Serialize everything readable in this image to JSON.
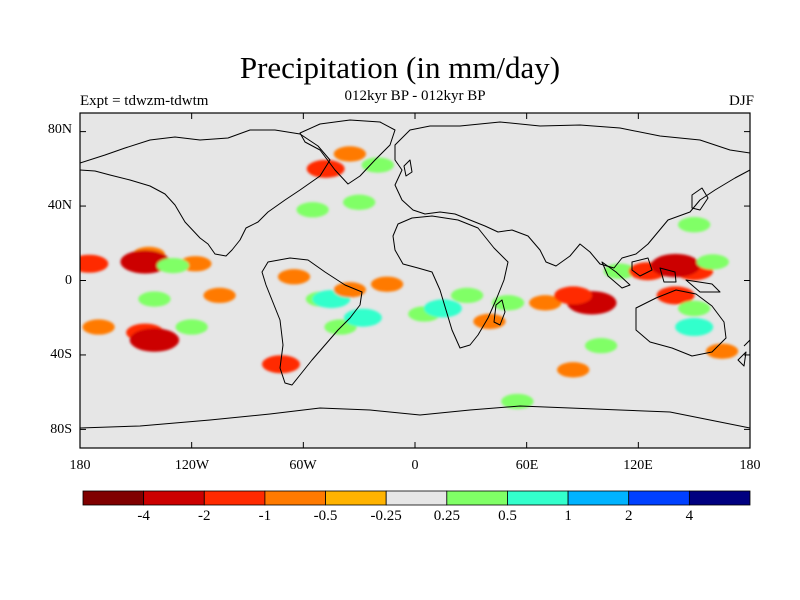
{
  "title": "Precipitation (in mm/day)",
  "subtitle": "012kyr BP - 012kyr BP",
  "experiment": "Expt = tdwzm-tdwtm",
  "season": "DJF",
  "lat_labels": [
    "80N",
    "40N",
    "0",
    "40S",
    "80S"
  ],
  "lon_labels": [
    "180",
    "120W",
    "60W",
    "0",
    "60E",
    "120E",
    "180"
  ],
  "colorbar": {
    "colors": [
      "#800000",
      "#cc0000",
      "#ff2a00",
      "#ff7a00",
      "#ffb300",
      "#e6e6e6",
      "#80ff66",
      "#33ffcc",
      "#00b3ff",
      "#0040ff",
      "#000080"
    ],
    "labels": [
      "-4",
      "-2",
      "-1",
      "-0.5",
      "-0.25",
      "0.25",
      "0.5",
      "1",
      "2",
      "4"
    ]
  },
  "chart_data": {
    "type": "heatmap",
    "title": "Precipitation (in mm/day)",
    "subtitle": "012kyr BP - 012kyr BP",
    "xlim": [
      -180,
      180
    ],
    "ylim": [
      -90,
      90
    ],
    "x_ticks": [
      "180",
      "120W",
      "60W",
      "0",
      "60E",
      "120E",
      "180"
    ],
    "y_ticks": [
      "80N",
      "40N",
      "0",
      "40S",
      "80S"
    ],
    "levels": [
      -4,
      -2,
      -1,
      -0.5,
      -0.25,
      0.25,
      0.5,
      1,
      2,
      4
    ],
    "colors": [
      "#800000",
      "#cc0000",
      "#ff2a00",
      "#ff7a00",
      "#ffb300",
      "#e6e6e6",
      "#80ff66",
      "#33ffcc",
      "#00b3ff",
      "#0040ff",
      "#000080"
    ],
    "fill_color": "#e6e6e6",
    "anomaly_regions": [
      {
        "lon": -175,
        "lat": 9,
        "value": -1
      },
      {
        "lon": -143,
        "lat": 14,
        "value": -0.5
      },
      {
        "lon": -145,
        "lat": 10,
        "value": -2
      },
      {
        "lon": -118,
        "lat": 9,
        "value": -0.5
      },
      {
        "lon": -130,
        "lat": 8,
        "value": 0.5
      },
      {
        "lon": -140,
        "lat": -10,
        "value": 0.5
      },
      {
        "lon": -105,
        "lat": -8,
        "value": -0.5
      },
      {
        "lon": -145,
        "lat": -28,
        "value": -1
      },
      {
        "lon": -140,
        "lat": -32,
        "value": -2
      },
      {
        "lon": -170,
        "lat": -25,
        "value": -0.5
      },
      {
        "lon": -120,
        "lat": -25,
        "value": 0.5
      },
      {
        "lon": -72,
        "lat": -45,
        "value": -1
      },
      {
        "lon": -50,
        "lat": -10,
        "value": 0.5
      },
      {
        "lon": -45,
        "lat": -10,
        "value": 1
      },
      {
        "lon": -40,
        "lat": -25,
        "value": 0.5
      },
      {
        "lon": -28,
        "lat": -20,
        "value": 1
      },
      {
        "lon": -35,
        "lat": -5,
        "value": -0.5
      },
      {
        "lon": -15,
        "lat": -2,
        "value": -0.5
      },
      {
        "lon": -65,
        "lat": 2,
        "value": -0.5
      },
      {
        "lon": -48,
        "lat": 60,
        "value": -1
      },
      {
        "lon": -35,
        "lat": 68,
        "value": -0.5
      },
      {
        "lon": -20,
        "lat": 62,
        "value": 0.5
      },
      {
        "lon": -30,
        "lat": 42,
        "value": 0.5
      },
      {
        "lon": -55,
        "lat": 38,
        "value": 0.5
      },
      {
        "lon": 5,
        "lat": -18,
        "value": 0.5
      },
      {
        "lon": 15,
        "lat": -15,
        "value": 1
      },
      {
        "lon": 28,
        "lat": -8,
        "value": 0.5
      },
      {
        "lon": 40,
        "lat": -22,
        "value": -0.5
      },
      {
        "lon": 50,
        "lat": -12,
        "value": 0.5
      },
      {
        "lon": 70,
        "lat": -12,
        "value": -0.5
      },
      {
        "lon": 95,
        "lat": -12,
        "value": -2
      },
      {
        "lon": 85,
        "lat": -8,
        "value": -1
      },
      {
        "lon": 110,
        "lat": 5,
        "value": 0.5
      },
      {
        "lon": 125,
        "lat": 5,
        "value": -1
      },
      {
        "lon": 150,
        "lat": 5,
        "value": -1
      },
      {
        "lon": 140,
        "lat": 8,
        "value": -2
      },
      {
        "lon": 160,
        "lat": 10,
        "value": 0.5
      },
      {
        "lon": 150,
        "lat": 30,
        "value": 0.5
      },
      {
        "lon": 140,
        "lat": -8,
        "value": -1
      },
      {
        "lon": 150,
        "lat": -15,
        "value": 0.5
      },
      {
        "lon": 150,
        "lat": -25,
        "value": 1
      },
      {
        "lon": 165,
        "lat": -38,
        "value": -0.5
      },
      {
        "lon": 100,
        "lat": -35,
        "value": 0.5
      },
      {
        "lon": 85,
        "lat": -48,
        "value": -0.5
      },
      {
        "lon": 55,
        "lat": -65,
        "value": 0.5
      }
    ]
  }
}
